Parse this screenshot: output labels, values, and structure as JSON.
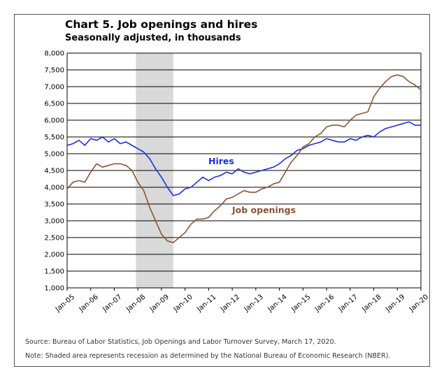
{
  "title": "Chart 5. Job openings and hires",
  "subtitle": "Seasonally adjusted, in thousands",
  "source": "Source: Bureau of Labor Statistics, Job Openings and Labor Turnover Survey, March 17, 2020.",
  "note": "Note: Shaded area represents recession as determined by the National Bureau of Economic Research (NBER).",
  "colors": {
    "hires": "#1f2de8",
    "openings": "#8b5534",
    "recession": "#d9d9d9",
    "grid": "#000000"
  },
  "chart_data": {
    "type": "line",
    "title": "Chart 5. Job openings and hires",
    "subtitle": "Seasonally adjusted, in thousands",
    "xlabel": "",
    "ylabel": "",
    "ylim": [
      1000,
      8000
    ],
    "yticks": [
      1000,
      1500,
      2000,
      2500,
      3000,
      3500,
      4000,
      4500,
      5000,
      5500,
      6000,
      6500,
      7000,
      7500,
      8000
    ],
    "ytick_labels": [
      "1,000",
      "1,500",
      "2,000",
      "2,500",
      "3,000",
      "3,500",
      "4,000",
      "4,500",
      "5,000",
      "5,500",
      "6,000",
      "6,500",
      "7,000",
      "7,500",
      "8,000"
    ],
    "xlim": [
      2005.0,
      2020.0
    ],
    "xticks": [
      2005,
      2006,
      2007,
      2008,
      2009,
      2010,
      2011,
      2012,
      2013,
      2014,
      2015,
      2016,
      2017,
      2018,
      2019,
      2020
    ],
    "xtick_labels": [
      "Jan-05",
      "Jan-06",
      "Jan-07",
      "Jan-08",
      "Jan-09",
      "Jan-10",
      "Jan-11",
      "Jan-12",
      "Jan-13",
      "Jan-14",
      "Jan-15",
      "Jan-16",
      "Jan-17",
      "Jan-18",
      "Jan-19",
      "Jan-20"
    ],
    "grid": true,
    "recession": {
      "start": 2007.917,
      "end": 2009.5
    },
    "series": [
      {
        "name": "Hires",
        "label": "Hires",
        "x": [
          2005.0,
          2005.25,
          2005.5,
          2005.75,
          2006.0,
          2006.25,
          2006.5,
          2006.75,
          2007.0,
          2007.25,
          2007.5,
          2007.75,
          2008.0,
          2008.25,
          2008.5,
          2008.75,
          2009.0,
          2009.25,
          2009.5,
          2009.75,
          2010.0,
          2010.25,
          2010.5,
          2010.75,
          2011.0,
          2011.25,
          2011.5,
          2011.75,
          2012.0,
          2012.25,
          2012.5,
          2012.75,
          2013.0,
          2013.25,
          2013.5,
          2013.75,
          2014.0,
          2014.25,
          2014.5,
          2014.75,
          2015.0,
          2015.25,
          2015.5,
          2015.75,
          2016.0,
          2016.25,
          2016.5,
          2016.75,
          2017.0,
          2017.25,
          2017.5,
          2017.75,
          2018.0,
          2018.25,
          2018.5,
          2018.75,
          2019.0,
          2019.25,
          2019.5,
          2019.75,
          2020.0
        ],
        "values": [
          5250,
          5300,
          5400,
          5250,
          5450,
          5400,
          5500,
          5350,
          5450,
          5300,
          5350,
          5250,
          5150,
          5050,
          4850,
          4550,
          4300,
          4000,
          3750,
          3800,
          3950,
          4000,
          4150,
          4300,
          4200,
          4300,
          4350,
          4450,
          4400,
          4550,
          4450,
          4400,
          4450,
          4500,
          4550,
          4600,
          4700,
          4850,
          4950,
          5100,
          5150,
          5250,
          5300,
          5350,
          5450,
          5400,
          5350,
          5350,
          5450,
          5400,
          5500,
          5550,
          5500,
          5650,
          5750,
          5800,
          5850,
          5900,
          5950,
          5850,
          5850
        ]
      },
      {
        "name": "Job openings",
        "label": "Job openings",
        "x": [
          2005.0,
          2005.25,
          2005.5,
          2005.75,
          2006.0,
          2006.25,
          2006.5,
          2006.75,
          2007.0,
          2007.25,
          2007.5,
          2007.75,
          2008.0,
          2008.25,
          2008.5,
          2008.75,
          2009.0,
          2009.25,
          2009.5,
          2009.75,
          2010.0,
          2010.25,
          2010.5,
          2010.75,
          2011.0,
          2011.25,
          2011.5,
          2011.75,
          2012.0,
          2012.25,
          2012.5,
          2012.75,
          2013.0,
          2013.25,
          2013.5,
          2013.75,
          2014.0,
          2014.25,
          2014.5,
          2014.75,
          2015.0,
          2015.25,
          2015.5,
          2015.75,
          2016.0,
          2016.25,
          2016.5,
          2016.75,
          2017.0,
          2017.25,
          2017.5,
          2017.75,
          2018.0,
          2018.25,
          2018.5,
          2018.75,
          2019.0,
          2019.25,
          2019.5,
          2019.75,
          2020.0
        ],
        "values": [
          3950,
          4150,
          4200,
          4150,
          4450,
          4700,
          4600,
          4650,
          4700,
          4700,
          4650,
          4500,
          4150,
          3900,
          3400,
          3000,
          2600,
          2400,
          2350,
          2500,
          2650,
          2900,
          3050,
          3050,
          3100,
          3300,
          3450,
          3650,
          3700,
          3800,
          3900,
          3850,
          3850,
          3950,
          4000,
          4100,
          4150,
          4450,
          4750,
          4950,
          5200,
          5300,
          5500,
          5600,
          5800,
          5850,
          5850,
          5800,
          6000,
          6150,
          6200,
          6250,
          6700,
          6950,
          7150,
          7300,
          7350,
          7300,
          7150,
          7050,
          6900
        ]
      }
    ]
  }
}
